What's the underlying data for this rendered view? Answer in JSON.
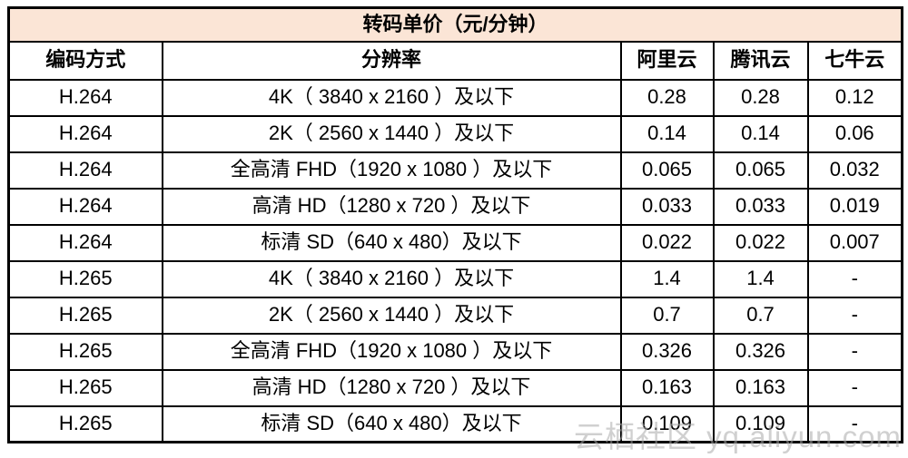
{
  "title": "转码单价（元/分钟）",
  "watermark_text": "云栖社区 yq.aliyun.com",
  "colors": {
    "title_background": "#fbe5d6",
    "border": "#000000",
    "cell_background": "#ffffff",
    "text": "#000000",
    "watermark": "#aaaaaa"
  },
  "chart_data": {
    "type": "table",
    "title": "转码单价（元/分钟）",
    "columns": [
      "编码方式",
      "分辨率",
      "阿里云",
      "腾讯云",
      "七牛云"
    ],
    "rows": [
      [
        "H.264",
        "4K（ 3840 x 2160 ）及以下",
        "0.28",
        "0.28",
        "0.12"
      ],
      [
        "H.264",
        "2K（ 2560 x 1440 ）及以下",
        "0.14",
        "0.14",
        "0.06"
      ],
      [
        "H.264",
        "全高清 FHD（1920 x 1080 ）及以下",
        "0.065",
        "0.065",
        "0.032"
      ],
      [
        "H.264",
        "高清 HD（1280 x 720 ）及以下",
        "0.033",
        "0.033",
        "0.019"
      ],
      [
        "H.264",
        "标清 SD（640 x 480）及以下",
        "0.022",
        "0.022",
        "0.007"
      ],
      [
        "H.265",
        "4K（ 3840 x 2160 ）及以下",
        "1.4",
        "1.4",
        "-"
      ],
      [
        "H.265",
        "2K（ 2560 x 1440 ）及以下",
        "0.7",
        "0.7",
        "-"
      ],
      [
        "H.265",
        "全高清 FHD（1920 x 1080 ）及以下",
        "0.326",
        "0.326",
        "-"
      ],
      [
        "H.265",
        "高清 HD（1280 x 720 ）及以下",
        "0.163",
        "0.163",
        "-"
      ],
      [
        "H.265",
        "标清 SD（640 x 480）及以下",
        "0.109",
        "0.109",
        "-"
      ]
    ]
  }
}
